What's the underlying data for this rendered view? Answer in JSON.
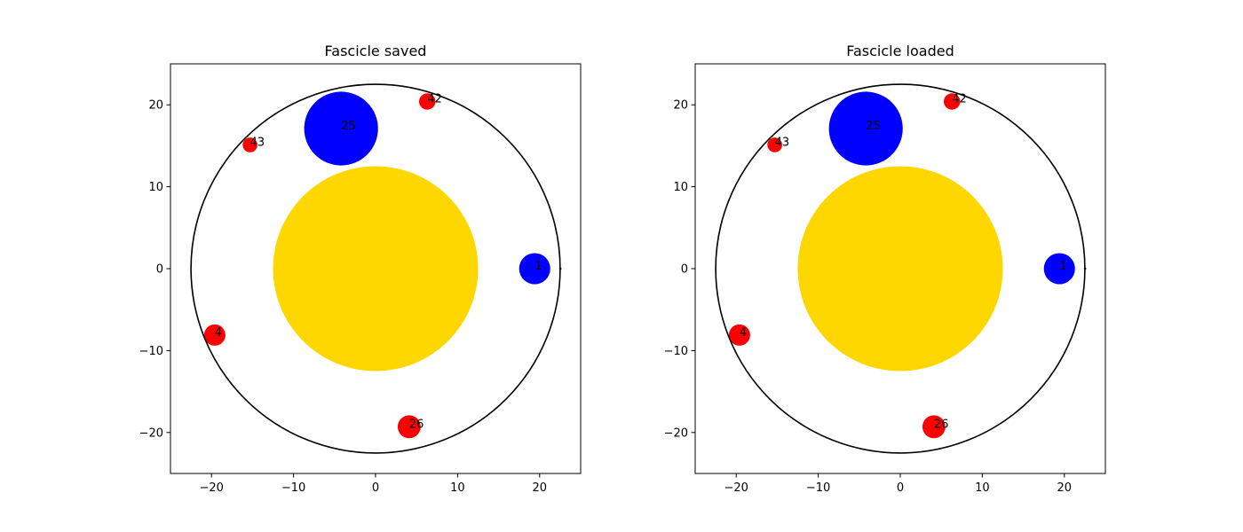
{
  "chart_data": [
    {
      "type": "scatter",
      "title": "Fascicle saved",
      "xlabel": "",
      "ylabel": "",
      "xlim": [
        -25,
        25
      ],
      "ylim": [
        -25,
        25
      ],
      "xticks": [
        -20,
        -10,
        0,
        10,
        20
      ],
      "yticks": [
        -20,
        -10,
        0,
        10,
        20
      ],
      "xtick_labels": [
        "−20",
        "−10",
        "0",
        "10",
        "20"
      ],
      "ytick_labels": [
        "−20",
        "−10",
        "0",
        "10",
        "20"
      ],
      "grid": false,
      "boundary": {
        "cx": 0,
        "cy": 0,
        "r": 22.5,
        "color": "#000000"
      },
      "core": {
        "cx": 0,
        "cy": 0,
        "r": 12.5,
        "color": "#FFD700"
      },
      "fibers": [
        {
          "label": "25",
          "cx": -4.2,
          "cy": 17.1,
          "r": 4.5,
          "color": "#0000FF"
        },
        {
          "label": "42",
          "cx": 6.3,
          "cy": 20.4,
          "r": 1.0,
          "color": "#FF0000"
        },
        {
          "label": "43",
          "cx": -15.3,
          "cy": 15.1,
          "r": 0.9,
          "color": "#FF0000"
        },
        {
          "label": "1",
          "cx": 19.4,
          "cy": 0.0,
          "r": 1.9,
          "color": "#0000FF"
        },
        {
          "label": "4",
          "cx": -19.6,
          "cy": -8.1,
          "r": 1.3,
          "color": "#FF0000"
        },
        {
          "label": "26",
          "cx": 4.1,
          "cy": -19.3,
          "r": 1.4,
          "color": "#FF0000"
        }
      ]
    },
    {
      "type": "scatter",
      "title": "Fascicle loaded",
      "xlabel": "",
      "ylabel": "",
      "xlim": [
        -25,
        25
      ],
      "ylim": [
        -25,
        25
      ],
      "xticks": [
        -20,
        -10,
        0,
        10,
        20
      ],
      "yticks": [
        -20,
        -10,
        0,
        10,
        20
      ],
      "xtick_labels": [
        "−20",
        "−10",
        "0",
        "10",
        "20"
      ],
      "ytick_labels": [
        "−20",
        "−10",
        "0",
        "10",
        "20"
      ],
      "grid": false,
      "boundary": {
        "cx": 0,
        "cy": 0,
        "r": 22.5,
        "color": "#000000"
      },
      "core": {
        "cx": 0,
        "cy": 0,
        "r": 12.5,
        "color": "#FFD700"
      },
      "fibers": [
        {
          "label": "25",
          "cx": -4.2,
          "cy": 17.1,
          "r": 4.5,
          "color": "#0000FF"
        },
        {
          "label": "42",
          "cx": 6.3,
          "cy": 20.4,
          "r": 1.0,
          "color": "#FF0000"
        },
        {
          "label": "43",
          "cx": -15.3,
          "cy": 15.1,
          "r": 0.9,
          "color": "#FF0000"
        },
        {
          "label": "1",
          "cx": 19.4,
          "cy": 0.0,
          "r": 1.9,
          "color": "#0000FF"
        },
        {
          "label": "4",
          "cx": -19.6,
          "cy": -8.1,
          "r": 1.3,
          "color": "#FF0000"
        },
        {
          "label": "26",
          "cx": 4.1,
          "cy": -19.3,
          "r": 1.4,
          "color": "#FF0000"
        }
      ]
    }
  ]
}
